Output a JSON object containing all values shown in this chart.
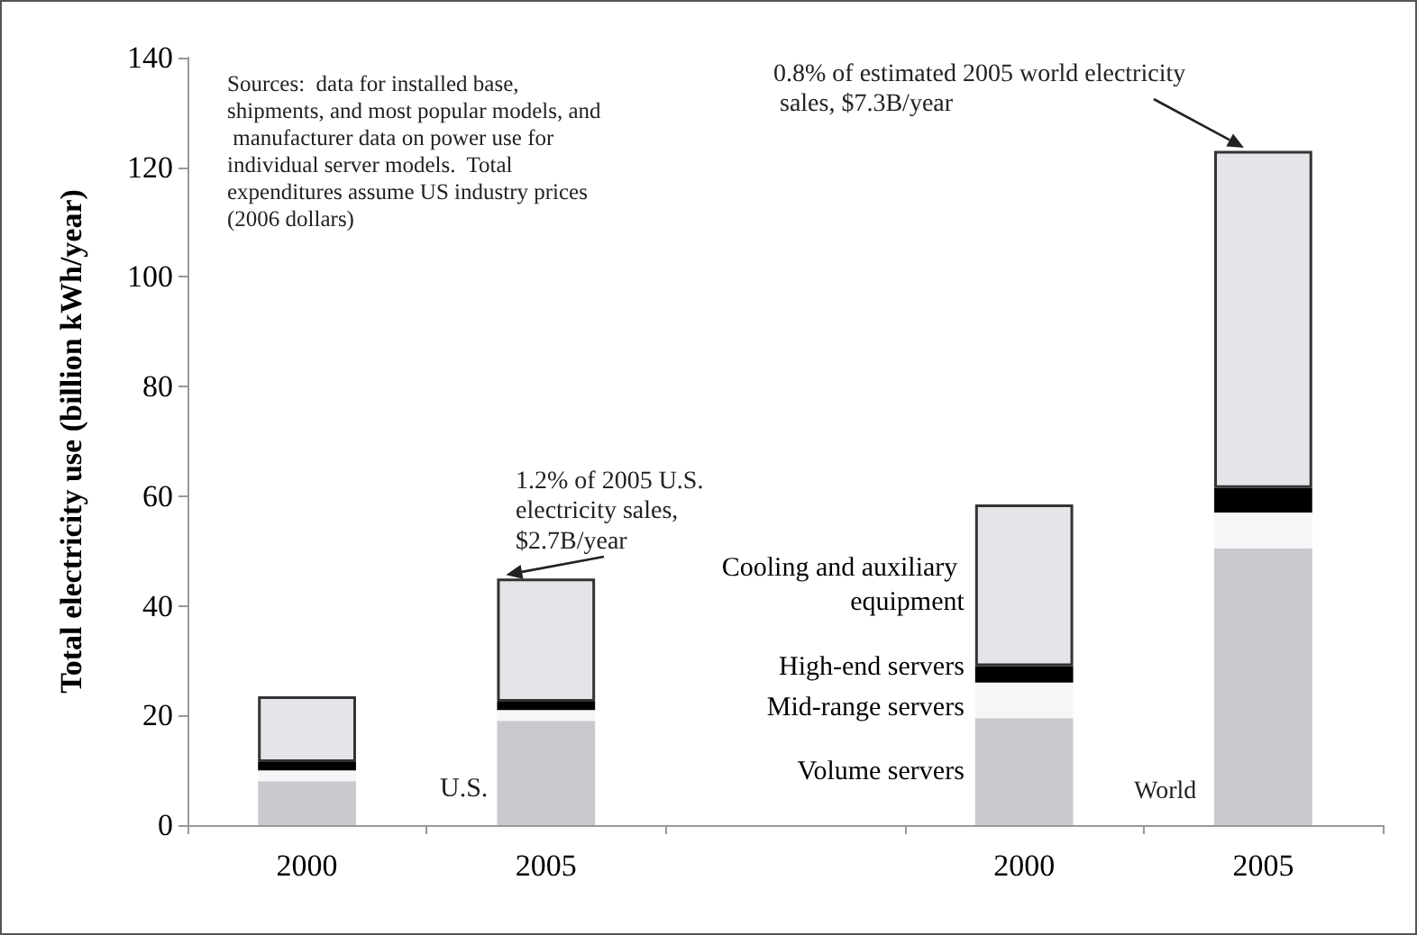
{
  "chart_data": {
    "type": "bar",
    "stacked": true,
    "ylabel": "Total electricity use (billion kWh/year)",
    "categories": [
      "2000",
      "2005",
      null,
      "2000",
      "2005"
    ],
    "series": [
      {
        "name": "Volume servers",
        "color": "#c8cacd",
        "values": [
          8,
          19,
          null,
          19.5,
          50.5
        ]
      },
      {
        "name": "Mid-range servers",
        "color": "#f5f6f7",
        "values": [
          2,
          2,
          null,
          6.5,
          6.5
        ]
      },
      {
        "name": "High-end servers",
        "color": "#000000",
        "values": [
          1.5,
          1.5,
          null,
          3,
          4.5
        ]
      },
      {
        "name": "Cooling and auxiliary equipment",
        "color": "#e3e5e8",
        "values": [
          12,
          22.5,
          null,
          29.5,
          61.5
        ]
      }
    ],
    "ylim": [
      0,
      140
    ],
    "yticks": [
      0,
      20,
      40,
      60,
      80,
      100,
      120,
      140
    ],
    "grid": false,
    "legend": false,
    "annotations": [
      "Sources:  data for installed base, shipments, and most popular models, and manufacturer data on power use for individual server models.  Total expenditures assume US industry prices (2006 dollars)",
      {
        "text": "1.2% of 2005 U.S. electricity sales, $2.7B/year",
        "x": "2005",
        "y": 45
      },
      "0.8% of estimated 2005 world electricity sales, $7.3B/year",
      "U.S.",
      "World"
    ]
  }
}
